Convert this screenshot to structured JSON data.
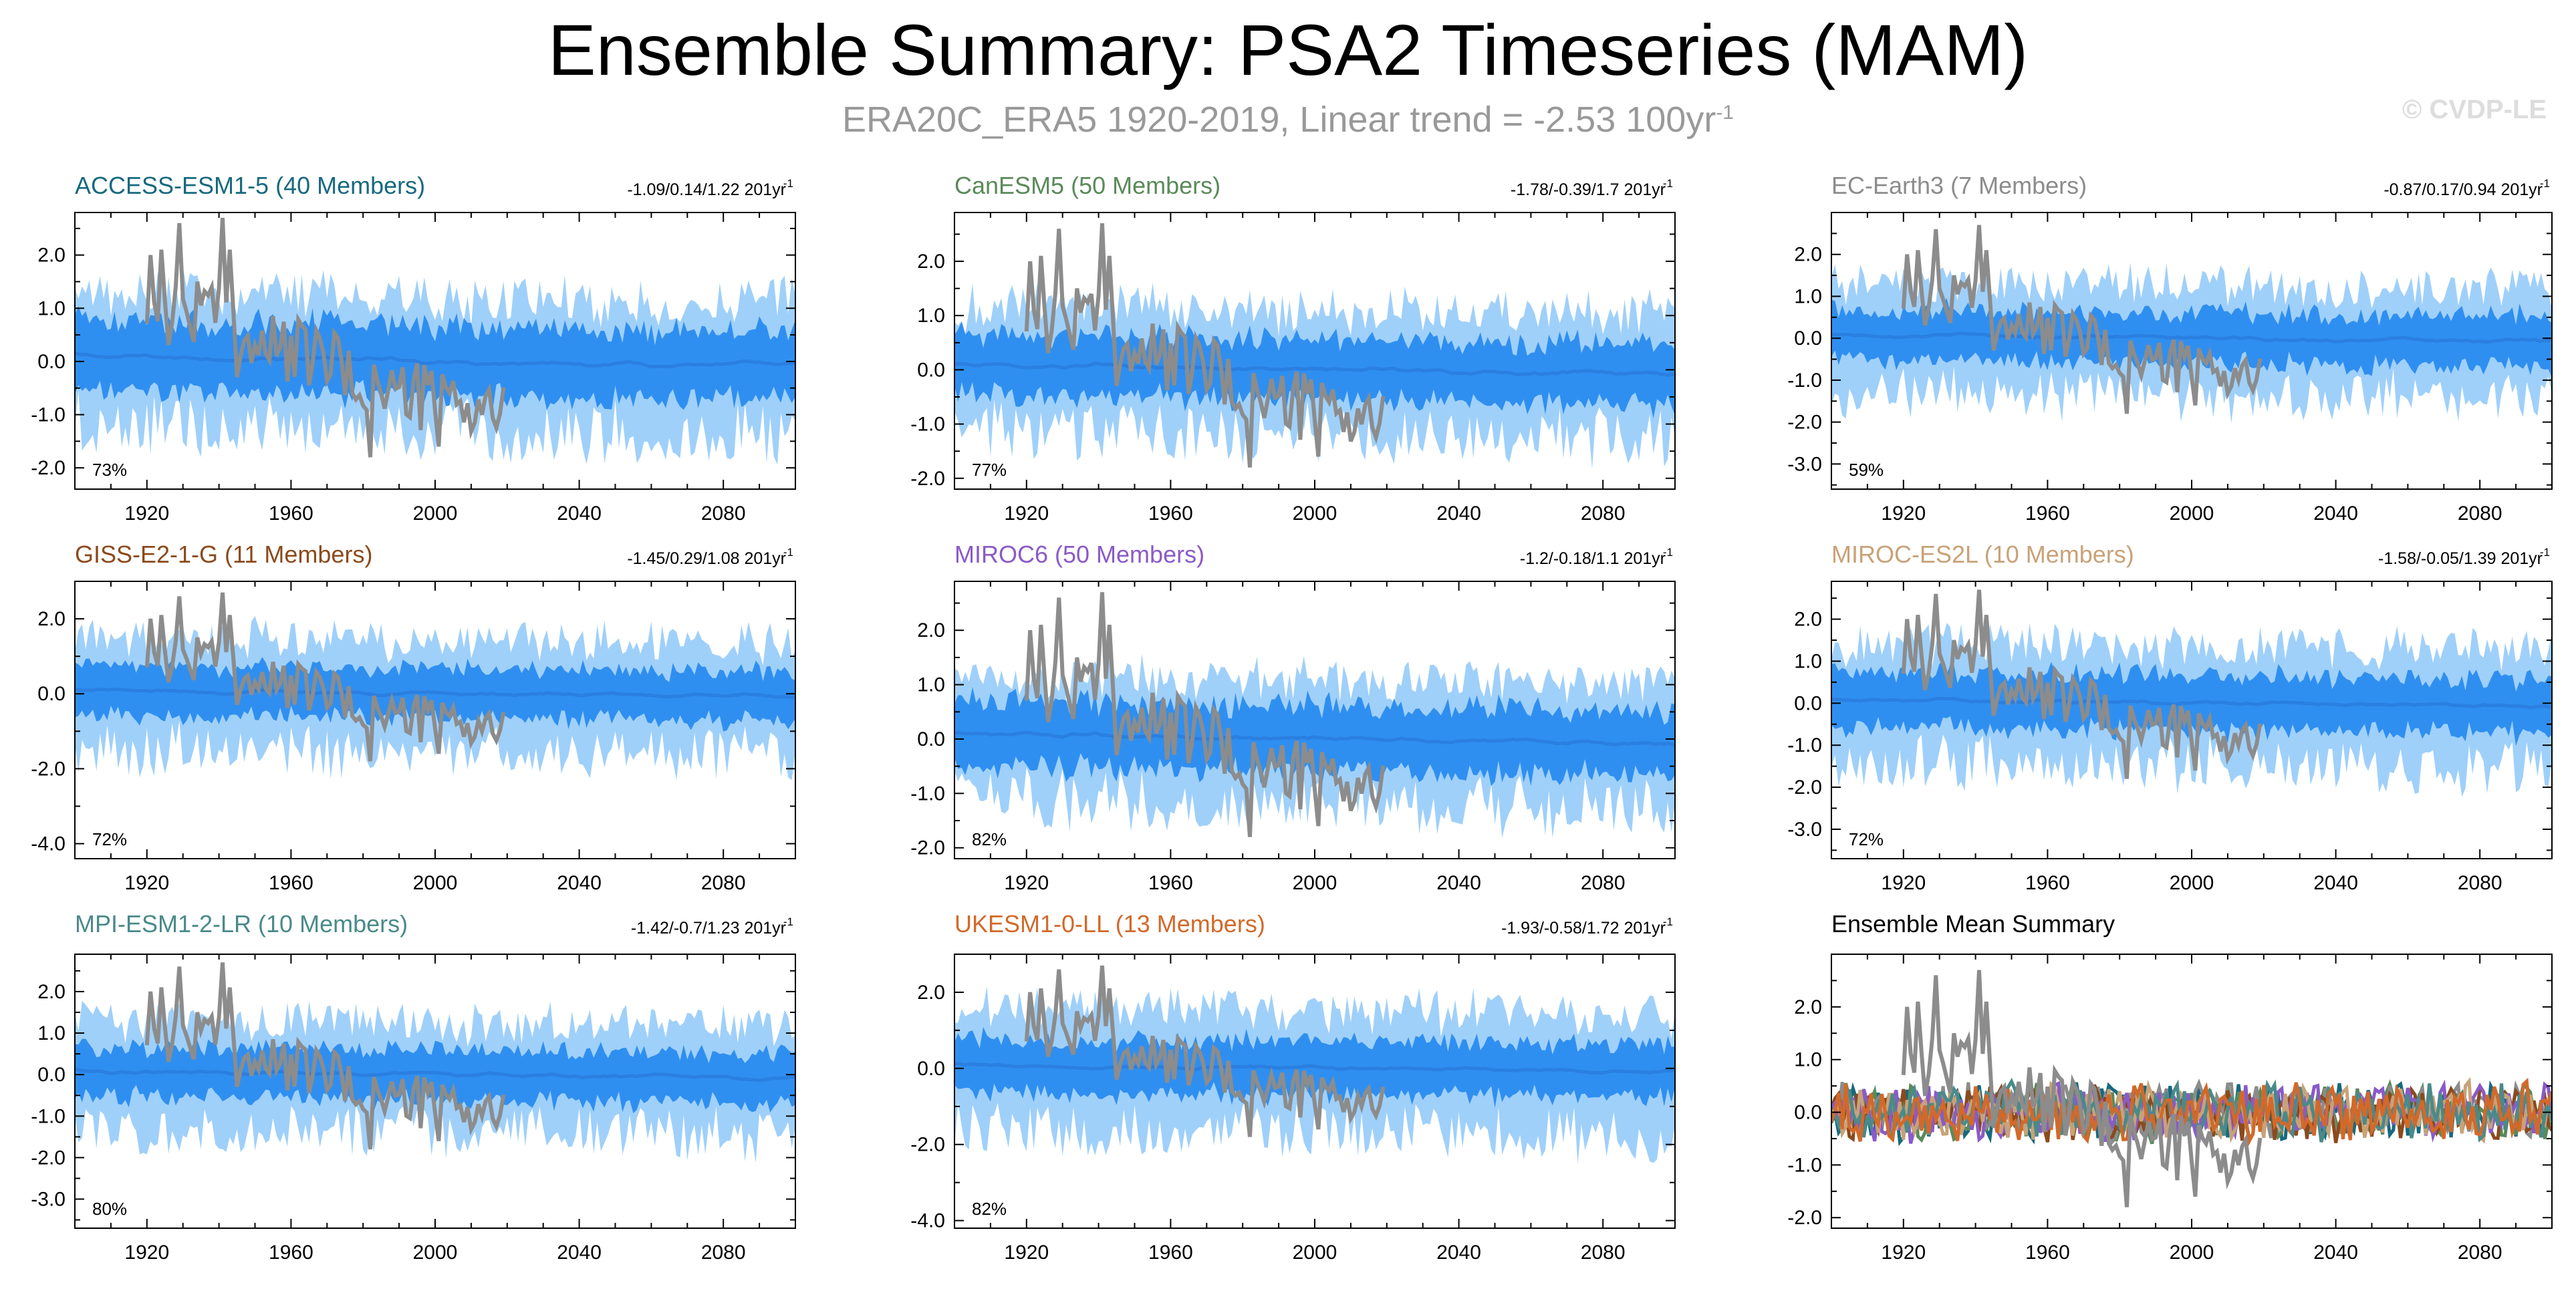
{
  "title": "Ensemble Summary: PSA2 Timeseries (MAM)",
  "subtitle": {
    "text": "ERA20C_ERA5 1920-2019, Linear trend = -2.53 100yr",
    "exponent": "-1"
  },
  "copyright": "© CVDP-LE",
  "colors": {
    "obs": "#8c8c8c",
    "mean": "#2a7fe0",
    "band_inner": "#2f8ff0",
    "band_outer": "#9fd0fa",
    "axis": "#000000"
  },
  "chart_data": [
    {
      "type": "area",
      "title": "ACCESS-ESM1-5 (40 Members)",
      "title_color": "#17697f",
      "range": "-1.09/0.14/1.22 201yr",
      "range_exp": "-1",
      "pct": "73%",
      "xlim": [
        1900,
        2100
      ],
      "ylim": [
        -2.4,
        2.8
      ],
      "yticks": [
        2.0,
        1.0,
        0.0,
        -1.0,
        -2.0
      ],
      "ytick_labels": [
        "2.0",
        "1.0",
        "0.0",
        "-1.0",
        "-2.0"
      ],
      "xticks": [
        1920,
        1960,
        2000,
        2040,
        2080
      ],
      "xtick_labels": [
        "1920",
        "1960",
        "2000",
        "2040",
        "2080"
      ],
      "inner": 0.65,
      "outer": 1.25,
      "obs_scale": 1.0
    },
    {
      "type": "area",
      "title": "CanESM5 (50 Members)",
      "title_color": "#5a8a5a",
      "range": "-1.78/-0.39/1.7 201yr",
      "range_exp": "-1",
      "pct": "77%",
      "xlim": [
        1900,
        2100
      ],
      "ylim": [
        -2.2,
        2.9
      ],
      "yticks": [
        2.0,
        1.0,
        0.0,
        -1.0,
        -2.0
      ],
      "ytick_labels": [
        "2.0",
        "1.0",
        "0.0",
        "-1.0",
        "-2.0"
      ],
      "xticks": [
        1920,
        1960,
        2000,
        2040,
        2080
      ],
      "xtick_labels": [
        "1920",
        "1960",
        "2000",
        "2040",
        "2080"
      ],
      "inner": 0.55,
      "outer": 1.15,
      "obs_scale": 1.0
    },
    {
      "type": "area",
      "title": "EC-Earth3 (7 Members)",
      "title_color": "#8c8c8c",
      "range": "-0.87/0.17/0.94 201yr",
      "range_exp": "-1",
      "pct": "59%",
      "xlim": [
        1900,
        2100
      ],
      "ylim": [
        -3.6,
        3.0
      ],
      "yticks": [
        2.0,
        1.0,
        0.0,
        -1.0,
        -2.0,
        -3.0
      ],
      "ytick_labels": [
        "2.0",
        "1.0",
        "0.0",
        "-1.0",
        "-2.0",
        "-3.0"
      ],
      "xticks": [
        1920,
        1960,
        2000,
        2040,
        2080
      ],
      "xtick_labels": [
        "1920",
        "1960",
        "2000",
        "2040",
        "2080"
      ],
      "inner": 0.6,
      "outer": 1.3,
      "obs_scale": 1.0
    },
    {
      "type": "area",
      "title": "GISS-E2-1-G (11 Members)",
      "title_color": "#8b4a1c",
      "range": "-1.45/0.29/1.08 201yr",
      "range_exp": "-1",
      "pct": "72%",
      "xlim": [
        1900,
        2100
      ],
      "ylim": [
        -4.4,
        3.0
      ],
      "yticks": [
        2.0,
        0.0,
        -2.0,
        -4.0
      ],
      "ytick_labels": [
        "2.0",
        "0.0",
        "-2.0",
        "-4.0"
      ],
      "xticks": [
        1920,
        1960,
        2000,
        2040,
        2080
      ],
      "xtick_labels": [
        "1920",
        "1960",
        "2000",
        "2040",
        "2080"
      ],
      "inner": 0.65,
      "outer": 1.5,
      "obs_scale": 1.0
    },
    {
      "type": "area",
      "title": "MIROC6 (50 Members)",
      "title_color": "#8a5ac8",
      "range": "-1.2/-0.18/1.1 201yr",
      "range_exp": "-1",
      "pct": "82%",
      "xlim": [
        1900,
        2100
      ],
      "ylim": [
        -2.2,
        2.9
      ],
      "yticks": [
        2.0,
        1.0,
        0.0,
        -1.0,
        -2.0
      ],
      "ytick_labels": [
        "2.0",
        "1.0",
        "0.0",
        "-1.0",
        "-2.0"
      ],
      "xticks": [
        1920,
        1960,
        2000,
        2040,
        2080
      ],
      "xtick_labels": [
        "1920",
        "1960",
        "2000",
        "2040",
        "2080"
      ],
      "inner": 0.6,
      "outer": 1.15,
      "obs_scale": 1.0
    },
    {
      "type": "area",
      "title": "MIROC-ES2L (10 Members)",
      "title_color": "#c8a278",
      "range": "-1.58/-0.05/1.39 201yr",
      "range_exp": "-1",
      "pct": "72%",
      "xlim": [
        1900,
        2100
      ],
      "ylim": [
        -3.7,
        2.9
      ],
      "yticks": [
        2.0,
        1.0,
        0.0,
        -1.0,
        -2.0,
        -3.0
      ],
      "ytick_labels": [
        "2.0",
        "1.0",
        "0.0",
        "-1.0",
        "-2.0",
        "-3.0"
      ],
      "xticks": [
        1920,
        1960,
        2000,
        2040,
        2080
      ],
      "xtick_labels": [
        "1920",
        "1960",
        "2000",
        "2040",
        "2080"
      ],
      "inner": 0.65,
      "outer": 1.4,
      "obs_scale": 1.0
    },
    {
      "type": "area",
      "title": "MPI-ESM1-2-LR (10 Members)",
      "title_color": "#4a8a8a",
      "range": "-1.42/-0.7/1.23 201yr",
      "range_exp": "-1",
      "pct": "80%",
      "xlim": [
        1900,
        2100
      ],
      "ylim": [
        -3.7,
        2.9
      ],
      "yticks": [
        2.0,
        1.0,
        0.0,
        -1.0,
        -2.0,
        -3.0
      ],
      "ytick_labels": [
        "2.0",
        "1.0",
        "0.0",
        "-1.0",
        "-2.0",
        "-3.0"
      ],
      "xticks": [
        1920,
        1960,
        2000,
        2040,
        2080
      ],
      "xtick_labels": [
        "1920",
        "1960",
        "2000",
        "2040",
        "2080"
      ],
      "inner": 0.6,
      "outer": 1.3,
      "obs_scale": 1.0
    },
    {
      "type": "area",
      "title": "UKESM1-0-LL (13 Members)",
      "title_color": "#d2692a",
      "range": "-1.93/-0.58/1.72 201yr",
      "range_exp": "-1",
      "pct": "82%",
      "xlim": [
        1900,
        2100
      ],
      "ylim": [
        -4.2,
        3.0
      ],
      "yticks": [
        2.0,
        0.0,
        -2.0,
        -4.0
      ],
      "ytick_labels": [
        "2.0",
        "0.0",
        "-2.0",
        "-4.0"
      ],
      "xticks": [
        1920,
        1960,
        2000,
        2040,
        2080
      ],
      "xtick_labels": [
        "1920",
        "1960",
        "2000",
        "2040",
        "2080"
      ],
      "inner": 0.7,
      "outer": 1.6,
      "obs_scale": 1.0
    },
    {
      "type": "line",
      "title": "Ensemble Mean Summary",
      "title_color": "#000000",
      "xlim": [
        1900,
        2100
      ],
      "ylim": [
        -2.2,
        3.0
      ],
      "yticks": [
        2.0,
        1.0,
        0.0,
        -1.0,
        -2.0
      ],
      "ytick_labels": [
        "2.0",
        "1.0",
        "0.0",
        "-1.0",
        "-2.0"
      ],
      "xticks": [
        1920,
        1960,
        2000,
        2040,
        2080
      ],
      "xtick_labels": [
        "1920",
        "1960",
        "2000",
        "2040",
        "2080"
      ],
      "series_colors": [
        "#17697f",
        "#5a8a5a",
        "#8c8c8c",
        "#8b4a1c",
        "#8a5ac8",
        "#c8a278",
        "#4a8a8a",
        "#d2692a"
      ]
    }
  ]
}
